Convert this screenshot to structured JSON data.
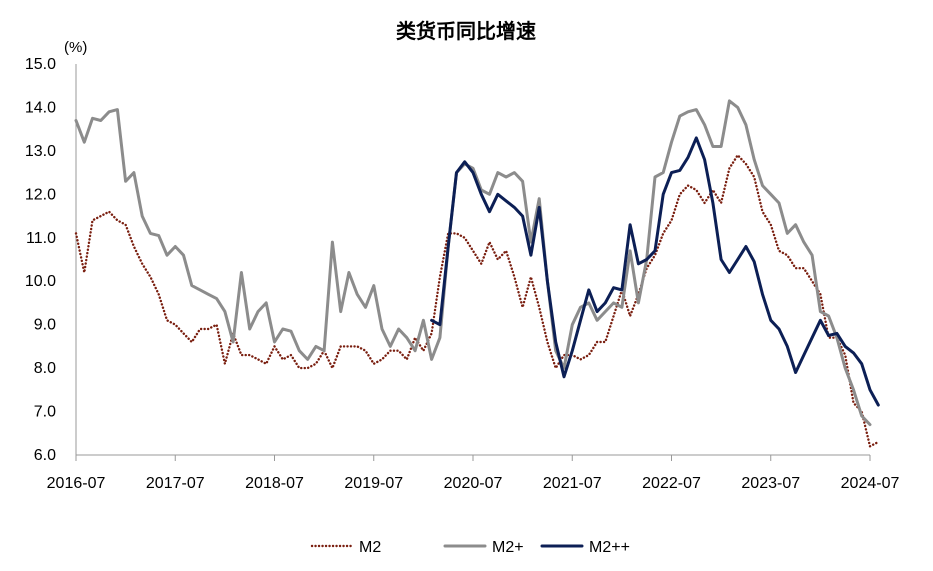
{
  "chart_data": {
    "type": "line",
    "title": "类货币同比增速",
    "ylabel": "(%)",
    "xlabel": "",
    "ylim": [
      6.0,
      15.0
    ],
    "yticks": [
      "6.0",
      "7.0",
      "8.0",
      "9.0",
      "10.0",
      "11.0",
      "12.0",
      "13.0",
      "14.0",
      "15.0"
    ],
    "ytick_values": [
      6,
      7,
      8,
      9,
      10,
      11,
      12,
      13,
      14,
      15
    ],
    "xticks": [
      "2016-07",
      "2017-07",
      "2018-07",
      "2019-07",
      "2020-07",
      "2021-07",
      "2022-07",
      "2023-07",
      "2024-07"
    ],
    "xtick_index": [
      0,
      12,
      24,
      36,
      48,
      60,
      72,
      84,
      96
    ],
    "legend_position": "bottom-center",
    "grid": false,
    "series": [
      {
        "name": "M2",
        "color": "#7a1f10",
        "style": "dotted",
        "start_index": 0,
        "values": [
          11.1,
          10.2,
          11.4,
          11.5,
          11.6,
          11.4,
          11.3,
          10.8,
          10.4,
          10.1,
          9.7,
          9.1,
          9.0,
          8.8,
          8.6,
          8.9,
          8.9,
          9.0,
          8.1,
          8.8,
          8.3,
          8.3,
          8.2,
          8.1,
          8.5,
          8.2,
          8.3,
          8.0,
          8.0,
          8.1,
          8.4,
          8.0,
          8.5,
          8.5,
          8.5,
          8.4,
          8.1,
          8.2,
          8.4,
          8.4,
          8.2,
          8.7,
          8.4,
          8.8,
          10.1,
          11.1,
          11.1,
          11.0,
          10.7,
          10.4,
          10.9,
          10.5,
          10.7,
          10.1,
          9.4,
          10.1,
          9.4,
          8.6,
          8.0,
          8.3,
          8.3,
          8.2,
          8.3,
          8.6,
          8.6,
          9.2,
          9.8,
          9.2,
          9.7,
          10.3,
          10.6,
          11.1,
          11.4,
          12.0,
          12.2,
          12.1,
          11.8,
          12.1,
          11.8,
          12.6,
          12.9,
          12.7,
          12.4,
          11.6,
          11.3,
          10.7,
          10.6,
          10.3,
          10.3,
          10.0,
          9.7,
          8.7,
          8.7,
          8.3,
          7.2,
          7.0,
          6.2,
          6.3
        ]
      },
      {
        "name": "M2+",
        "color": "#8c8c8c",
        "style": "solid",
        "start_index": 0,
        "values": [
          13.7,
          13.2,
          13.75,
          13.7,
          13.9,
          13.95,
          12.3,
          12.5,
          11.5,
          11.1,
          11.05,
          10.6,
          10.8,
          10.6,
          9.9,
          9.8,
          9.7,
          9.6,
          9.3,
          8.6,
          10.2,
          8.9,
          9.3,
          9.5,
          8.6,
          8.9,
          8.85,
          8.4,
          8.2,
          8.5,
          8.4,
          10.9,
          9.3,
          10.2,
          9.7,
          9.4,
          9.9,
          8.9,
          8.5,
          8.9,
          8.7,
          8.4,
          9.1,
          8.2,
          8.7,
          10.8,
          12.5,
          12.7,
          12.6,
          12.1,
          12.0,
          12.5,
          12.4,
          12.5,
          12.3,
          10.9,
          11.9,
          10.0,
          8.4,
          8.0,
          9.0,
          9.4,
          9.5,
          9.1,
          9.3,
          9.5,
          9.4,
          10.7,
          9.5,
          10.5,
          12.4,
          12.5,
          13.2,
          13.8,
          13.9,
          13.95,
          13.6,
          13.1,
          13.1,
          14.15,
          14.0,
          13.6,
          12.8,
          12.2,
          12.0,
          11.8,
          11.1,
          11.3,
          10.9,
          10.6,
          9.3,
          9.2,
          8.7,
          8.0,
          7.5,
          6.9,
          6.7
        ]
      },
      {
        "name": "M2++",
        "color": "#0c1f55",
        "style": "solid",
        "start_index": 43,
        "values": [
          9.1,
          9.0,
          10.8,
          12.5,
          12.75,
          12.5,
          12.0,
          11.6,
          12.0,
          11.85,
          11.7,
          11.5,
          10.6,
          11.7,
          10.0,
          8.6,
          7.8,
          8.4,
          9.1,
          9.8,
          9.3,
          9.5,
          9.85,
          9.8,
          11.3,
          10.4,
          10.5,
          10.7,
          12.0,
          12.5,
          12.55,
          12.85,
          13.3,
          12.8,
          11.8,
          10.5,
          10.2,
          10.5,
          10.8,
          10.45,
          9.7,
          9.1,
          8.9,
          8.5,
          7.9,
          8.3,
          8.7,
          9.1,
          8.75,
          8.8,
          8.5,
          8.35,
          8.1,
          7.5,
          7.15
        ]
      }
    ]
  }
}
